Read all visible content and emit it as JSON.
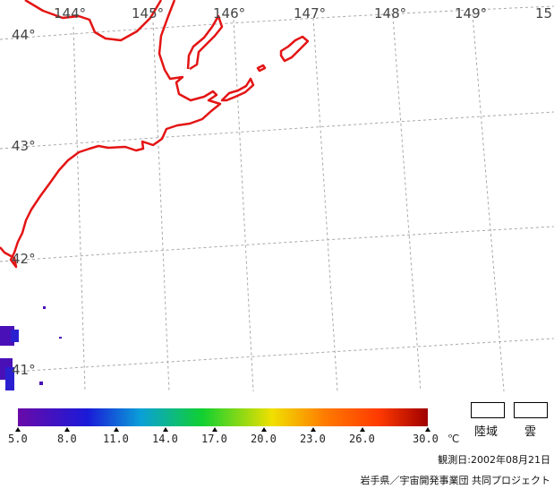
{
  "map": {
    "lon_labels": [
      "144°",
      "145°",
      "146°",
      "147°",
      "148°",
      "149°",
      "15"
    ],
    "lat_labels": [
      "44°",
      "43°",
      "42°",
      "41°"
    ],
    "coast_color": "#e41414",
    "grid_color": "#a8a8a8"
  },
  "colorbar": {
    "stops": [
      "#6a0aa8",
      "#1a1ad8",
      "#0aa0d8",
      "#10d030",
      "#f0e000",
      "#ff7a00",
      "#ff3a00",
      "#a00000"
    ],
    "tick_labels": [
      "5.0",
      "8.0",
      "11.0",
      "14.0",
      "17.0",
      "20.0",
      "23.0",
      "26.0",
      "30.0"
    ],
    "unit": "℃"
  },
  "legend": {
    "land_label": "陸域",
    "cloud_label": "雲"
  },
  "footer": {
    "observation_date": "観測日:2002年08月21日",
    "credit": "岩手県／宇宙開発事業団 共同プロジェクト"
  }
}
